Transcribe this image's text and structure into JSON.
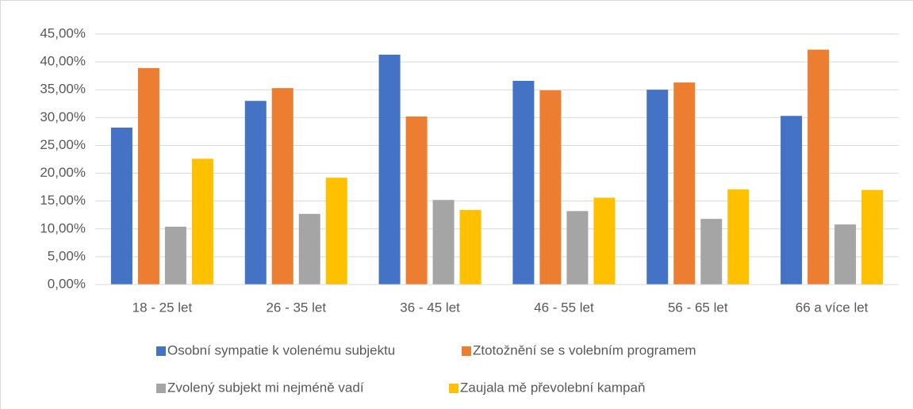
{
  "chart_data": {
    "type": "bar",
    "categories": [
      "18 - 25 let",
      "26 - 35 let",
      "36 - 45 let",
      "46 - 55 let",
      "56 - 65 let",
      "66 a více let"
    ],
    "series": [
      {
        "name": "Osobní sympatie k volenému subjektu",
        "color": "#4472c4",
        "values": [
          28.2,
          33.0,
          41.3,
          36.6,
          35.0,
          30.3
        ]
      },
      {
        "name": "Ztotožnění se s volebním programem",
        "color": "#ed7d31",
        "values": [
          38.9,
          35.3,
          30.2,
          34.9,
          36.3,
          42.2
        ]
      },
      {
        "name": "Zvolený subjekt mi nejméně vadí",
        "color": "#a5a5a5",
        "values": [
          10.4,
          12.7,
          15.2,
          13.2,
          11.8,
          10.8
        ]
      },
      {
        "name": "Zaujala mě převolební kampaň",
        "color": "#ffc000",
        "values": [
          22.6,
          19.2,
          13.4,
          15.6,
          17.1,
          17.0
        ]
      }
    ],
    "ylim": [
      0,
      45
    ],
    "yticks": [
      {
        "value": 0,
        "label": "0,00%"
      },
      {
        "value": 5,
        "label": "5,00%"
      },
      {
        "value": 10,
        "label": "10,00%"
      },
      {
        "value": 15,
        "label": "15,00%"
      },
      {
        "value": 20,
        "label": "20,00%"
      },
      {
        "value": 25,
        "label": "25,00%"
      },
      {
        "value": 30,
        "label": "30,00%"
      },
      {
        "value": 35,
        "label": "35,00%"
      },
      {
        "value": 40,
        "label": "40,00%"
      },
      {
        "value": 45,
        "label": "45,00%"
      }
    ],
    "grid": true,
    "legend": "bottom"
  }
}
